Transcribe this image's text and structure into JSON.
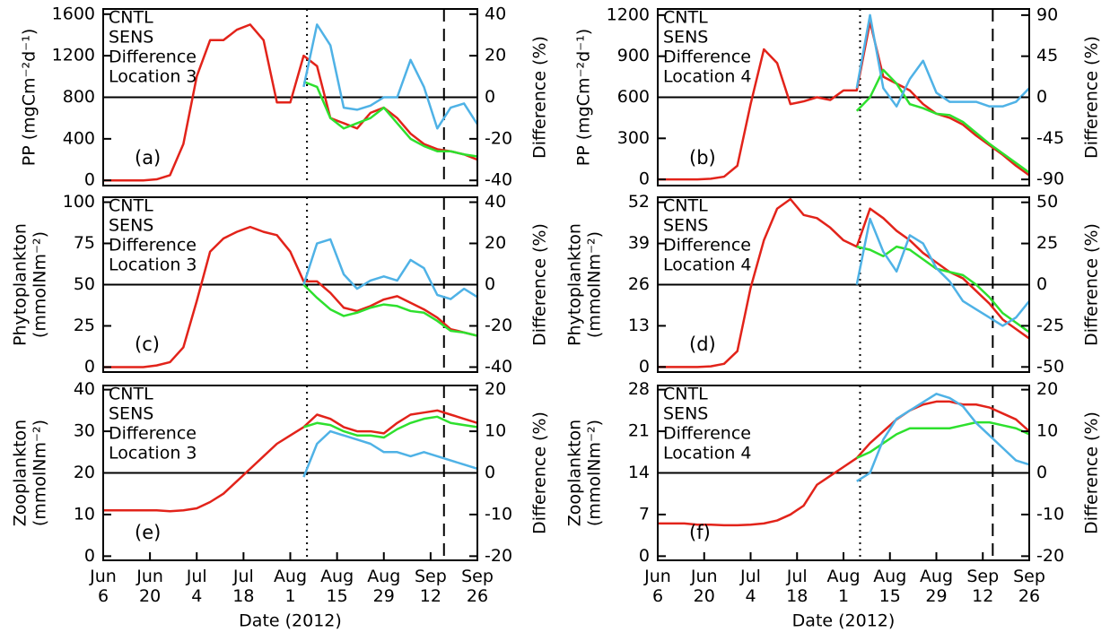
{
  "chart_data": [
    {
      "type": "line",
      "label": "(a)",
      "location": "Location 3",
      "ylabel": [
        "PP (mgCm⁻²d⁻¹)"
      ],
      "y2label": "Difference (%)",
      "x": [
        0,
        4,
        8,
        12,
        16,
        20,
        24,
        28,
        32,
        36,
        40,
        44,
        48,
        52,
        56,
        60,
        64,
        68,
        72,
        76,
        80,
        84,
        88,
        92,
        96,
        100,
        104,
        108,
        112
      ],
      "xlim": [
        0,
        112
      ],
      "ylim": [
        -50,
        1650
      ],
      "yticks": [
        0,
        400,
        800,
        1200,
        1600
      ],
      "y2lim": [
        -42.5,
        42.5
      ],
      "y2ticks": [
        -40,
        -20,
        0,
        20,
        40
      ],
      "zero_line_y2": 0,
      "vlines": [
        {
          "x": 61,
          "style": "dotted"
        },
        {
          "x": 102,
          "style": "dashed"
        }
      ],
      "series": [
        {
          "name": "CNTL",
          "color": "#e2231a",
          "values": [
            0,
            0,
            0,
            0,
            10,
            50,
            350,
            1000,
            1350,
            1350,
            1450,
            1500,
            1350,
            750,
            750,
            1200,
            1100,
            600,
            550,
            500,
            650,
            700,
            600,
            450,
            350,
            300,
            280,
            250,
            200
          ]
        },
        {
          "name": "SENS",
          "color": "#2ee02e",
          "values": [
            null,
            null,
            null,
            null,
            null,
            null,
            null,
            null,
            null,
            null,
            null,
            null,
            null,
            null,
            null,
            950,
            900,
            600,
            500,
            550,
            600,
            700,
            550,
            400,
            330,
            280,
            280,
            250,
            230
          ]
        },
        {
          "name": "Difference",
          "color": "#4fb2e6",
          "axis": "y2",
          "values": [
            null,
            null,
            null,
            null,
            null,
            null,
            null,
            null,
            null,
            null,
            null,
            null,
            null,
            null,
            null,
            5,
            35,
            25,
            -5,
            -6,
            -4,
            0,
            0,
            18,
            5,
            -15,
            -5,
            -3,
            -13
          ]
        }
      ]
    },
    {
      "type": "line",
      "label": "(b)",
      "location": "Location 4",
      "ylabel": [
        "PP (mgCm⁻²d⁻¹)"
      ],
      "y2label": "Difference (%)",
      "x": [
        0,
        4,
        8,
        12,
        16,
        20,
        24,
        28,
        32,
        36,
        40,
        44,
        48,
        52,
        56,
        60,
        64,
        68,
        72,
        76,
        80,
        84,
        88,
        92,
        96,
        100,
        104,
        108,
        112
      ],
      "xlim": [
        0,
        112
      ],
      "ylim": [
        -45,
        1245
      ],
      "yticks": [
        0,
        300,
        600,
        900,
        1200
      ],
      "y2lim": [
        -96.75,
        96.75
      ],
      "y2ticks": [
        -90,
        -45,
        0,
        45,
        90
      ],
      "zero_line_y2": 0,
      "vlines": [
        {
          "x": 61,
          "style": "dotted"
        },
        {
          "x": 101,
          "style": "dashed"
        }
      ],
      "series": [
        {
          "name": "CNTL",
          "color": "#e2231a",
          "values": [
            0,
            0,
            0,
            0,
            5,
            20,
            100,
            550,
            950,
            850,
            550,
            570,
            600,
            580,
            650,
            650,
            1150,
            750,
            700,
            650,
            550,
            480,
            450,
            400,
            320,
            250,
            180,
            100,
            30
          ]
        },
        {
          "name": "SENS",
          "color": "#2ee02e",
          "values": [
            null,
            null,
            null,
            null,
            null,
            null,
            null,
            null,
            null,
            null,
            null,
            null,
            null,
            null,
            null,
            500,
            600,
            800,
            700,
            550,
            520,
            480,
            470,
            420,
            340,
            260,
            190,
            120,
            50
          ]
        },
        {
          "name": "Difference",
          "color": "#4fb2e6",
          "axis": "y2",
          "values": [
            null,
            null,
            null,
            null,
            null,
            null,
            null,
            null,
            null,
            null,
            null,
            null,
            null,
            null,
            null,
            10,
            90,
            10,
            -10,
            20,
            40,
            5,
            -5,
            -5,
            -5,
            -10,
            -10,
            -5,
            10
          ]
        }
      ]
    },
    {
      "type": "line",
      "label": "(c)",
      "location": "Location 3",
      "ylabel": [
        "Phytoplankton",
        "(mmolNm⁻²)"
      ],
      "y2label": "Difference (%)",
      "x": [
        0,
        4,
        8,
        12,
        16,
        20,
        24,
        28,
        32,
        36,
        40,
        44,
        48,
        52,
        56,
        60,
        64,
        68,
        72,
        76,
        80,
        84,
        88,
        92,
        96,
        100,
        104,
        108,
        112
      ],
      "xlim": [
        0,
        112
      ],
      "ylim": [
        -3,
        103
      ],
      "yticks": [
        0,
        25,
        50,
        75,
        100
      ],
      "y2lim": [
        -42.4,
        42.4
      ],
      "y2ticks": [
        -40,
        -20,
        0,
        20,
        40
      ],
      "zero_line_y2": 0,
      "vlines": [
        {
          "x": 61,
          "style": "dotted"
        },
        {
          "x": 102,
          "style": "dashed"
        }
      ],
      "series": [
        {
          "name": "CNTL",
          "color": "#e2231a",
          "values": [
            0,
            0,
            0,
            0,
            1,
            3,
            12,
            40,
            70,
            78,
            82,
            85,
            82,
            80,
            70,
            52,
            52,
            45,
            36,
            34,
            37,
            41,
            43,
            39,
            35,
            30,
            23,
            21,
            19
          ]
        },
        {
          "name": "SENS",
          "color": "#2ee02e",
          "values": [
            null,
            null,
            null,
            null,
            null,
            null,
            null,
            null,
            null,
            null,
            null,
            null,
            null,
            null,
            null,
            50,
            42,
            35,
            31,
            33,
            36,
            38,
            37,
            34,
            33,
            28,
            22,
            21,
            19
          ]
        },
        {
          "name": "Difference",
          "color": "#4fb2e6",
          "axis": "y2",
          "values": [
            null,
            null,
            null,
            null,
            null,
            null,
            null,
            null,
            null,
            null,
            null,
            null,
            null,
            null,
            null,
            0,
            20,
            22,
            5,
            -2,
            2,
            4,
            2,
            12,
            8,
            -5,
            -7,
            -2,
            -6
          ]
        }
      ]
    },
    {
      "type": "line",
      "label": "(d)",
      "location": "Location 4",
      "ylabel": [
        "Phytoplankton",
        "(mmolNm⁻²)"
      ],
      "y2label": "Difference (%)",
      "x": [
        0,
        4,
        8,
        12,
        16,
        20,
        24,
        28,
        32,
        36,
        40,
        44,
        48,
        52,
        56,
        60,
        64,
        68,
        72,
        76,
        80,
        84,
        88,
        92,
        96,
        100,
        104,
        108,
        112
      ],
      "xlim": [
        0,
        112
      ],
      "ylim": [
        -1.6,
        53.6
      ],
      "yticks": [
        0,
        13,
        26,
        39,
        52
      ],
      "y2lim": [
        -53.1,
        53.1
      ],
      "y2ticks": [
        -50,
        -25,
        0,
        25,
        50
      ],
      "zero_line_y2": 0,
      "vlines": [
        {
          "x": 61,
          "style": "dotted"
        },
        {
          "x": 101,
          "style": "dashed"
        }
      ],
      "series": [
        {
          "name": "CNTL",
          "color": "#e2231a",
          "values": [
            0,
            0,
            0,
            0,
            0.2,
            1,
            5,
            25,
            40,
            50,
            53,
            48,
            47,
            44,
            40,
            38,
            50,
            47,
            43,
            40,
            36,
            33,
            30,
            28,
            24,
            20,
            15,
            12,
            9
          ]
        },
        {
          "name": "SENS",
          "color": "#2ee02e",
          "values": [
            null,
            null,
            null,
            null,
            null,
            null,
            null,
            null,
            null,
            null,
            null,
            null,
            null,
            null,
            null,
            38,
            37,
            35,
            38,
            37,
            34,
            31,
            30,
            29,
            26,
            22,
            17,
            14,
            11
          ]
        },
        {
          "name": "Difference",
          "color": "#4fb2e6",
          "axis": "y2",
          "values": [
            null,
            null,
            null,
            null,
            null,
            null,
            null,
            null,
            null,
            null,
            null,
            null,
            null,
            null,
            null,
            0,
            40,
            20,
            8,
            30,
            25,
            10,
            2,
            -10,
            -15,
            -20,
            -25,
            -20,
            -10
          ]
        }
      ]
    },
    {
      "type": "line",
      "label": "(e)",
      "location": "Location 3",
      "ylabel": [
        "Zooplankton",
        "(mmolNm⁻²)"
      ],
      "y2label": "Difference (%)",
      "xlabel": "Date (2012)",
      "x": [
        0,
        4,
        8,
        12,
        16,
        20,
        24,
        28,
        32,
        36,
        40,
        44,
        48,
        52,
        56,
        60,
        64,
        68,
        72,
        76,
        80,
        84,
        88,
        92,
        96,
        100,
        104,
        108,
        112
      ],
      "xlim": [
        0,
        112
      ],
      "xticks": [
        {
          "value": 0,
          "label": "Jun 6"
        },
        {
          "value": 14,
          "label": "Jun 20"
        },
        {
          "value": 28,
          "label": "Jul 4"
        },
        {
          "value": 42,
          "label": "Jul 18"
        },
        {
          "value": 56,
          "label": "Aug 1"
        },
        {
          "value": 70,
          "label": "Aug 15"
        },
        {
          "value": 84,
          "label": "Aug 29"
        },
        {
          "value": 98,
          "label": "Sep 12"
        },
        {
          "value": 112,
          "label": "Sep 26"
        }
      ],
      "ylim": [
        -1,
        41
      ],
      "yticks": [
        0,
        10,
        20,
        30,
        40
      ],
      "y2lim": [
        -21,
        21
      ],
      "y2ticks": [
        -20,
        -10,
        0,
        10,
        20
      ],
      "zero_line_y2": 0,
      "vlines": [
        {
          "x": 61,
          "style": "dotted"
        },
        {
          "x": 102,
          "style": "dashed"
        }
      ],
      "series": [
        {
          "name": "CNTL",
          "color": "#e2231a",
          "values": [
            11,
            11,
            11,
            11,
            11,
            10.8,
            11,
            11.5,
            13,
            15,
            18,
            21,
            24,
            27,
            29,
            31,
            34,
            33,
            31,
            30,
            30,
            29.5,
            32,
            34,
            34.5,
            35,
            34,
            33,
            32
          ]
        },
        {
          "name": "SENS",
          "color": "#2ee02e",
          "values": [
            null,
            null,
            null,
            null,
            null,
            null,
            null,
            null,
            null,
            null,
            null,
            null,
            null,
            null,
            null,
            31,
            32,
            31.5,
            30,
            29,
            29,
            28.5,
            30.5,
            32,
            33,
            33.5,
            32,
            31.5,
            31
          ]
        },
        {
          "name": "Difference",
          "color": "#4fb2e6",
          "axis": "y2",
          "values": [
            null,
            null,
            null,
            null,
            null,
            null,
            null,
            null,
            null,
            null,
            null,
            null,
            null,
            null,
            null,
            -1,
            7,
            10,
            9,
            8,
            7,
            5,
            5,
            4,
            5,
            4,
            3,
            2,
            1
          ]
        }
      ]
    },
    {
      "type": "line",
      "label": "(f)",
      "location": "Location 4",
      "ylabel": [
        "Zooplankton",
        "(mmolNm⁻²)"
      ],
      "y2label": "Difference (%)",
      "xlabel": "Date (2012)",
      "x": [
        0,
        4,
        8,
        12,
        16,
        20,
        24,
        28,
        32,
        36,
        40,
        44,
        48,
        52,
        56,
        60,
        64,
        68,
        72,
        76,
        80,
        84,
        88,
        92,
        96,
        100,
        104,
        108,
        112
      ],
      "xlim": [
        0,
        112
      ],
      "xticks": [
        {
          "value": 0,
          "label": "Jun 6"
        },
        {
          "value": 14,
          "label": "Jun 20"
        },
        {
          "value": 28,
          "label": "Jul 4"
        },
        {
          "value": 42,
          "label": "Jul 18"
        },
        {
          "value": 56,
          "label": "Aug 1"
        },
        {
          "value": 70,
          "label": "Aug 15"
        },
        {
          "value": 84,
          "label": "Aug 29"
        },
        {
          "value": 98,
          "label": "Sep 12"
        },
        {
          "value": 112,
          "label": "Sep 26"
        }
      ],
      "ylim": [
        -0.7,
        28.7
      ],
      "yticks": [
        0,
        7,
        14,
        21,
        28
      ],
      "y2lim": [
        -21,
        21
      ],
      "y2ticks": [
        -20,
        -10,
        0,
        10,
        20
      ],
      "zero_line_y2": 0,
      "vlines": [
        {
          "x": 61,
          "style": "dotted"
        },
        {
          "x": 101,
          "style": "dashed"
        }
      ],
      "series": [
        {
          "name": "CNTL",
          "color": "#e2231a",
          "values": [
            5.5,
            5.5,
            5.5,
            5.3,
            5.3,
            5.2,
            5.2,
            5.3,
            5.5,
            6,
            7,
            8.5,
            12,
            13.5,
            15,
            16.5,
            19,
            21,
            23,
            24.5,
            25.5,
            26,
            26,
            25.5,
            25.5,
            25,
            24,
            23,
            21
          ]
        },
        {
          "name": "SENS",
          "color": "#2ee02e",
          "values": [
            null,
            null,
            null,
            null,
            null,
            null,
            null,
            null,
            null,
            null,
            null,
            null,
            null,
            null,
            null,
            16.5,
            17.5,
            19,
            20.5,
            21.5,
            21.5,
            21.5,
            21.5,
            22,
            22.5,
            22.5,
            22,
            21.5,
            20.5
          ]
        },
        {
          "name": "Difference",
          "color": "#4fb2e6",
          "axis": "y2",
          "values": [
            null,
            null,
            null,
            null,
            null,
            null,
            null,
            null,
            null,
            null,
            null,
            null,
            null,
            null,
            null,
            -2,
            0,
            8,
            13,
            15,
            17,
            19,
            18,
            16,
            12,
            9,
            6,
            3,
            2
          ]
        }
      ]
    }
  ]
}
